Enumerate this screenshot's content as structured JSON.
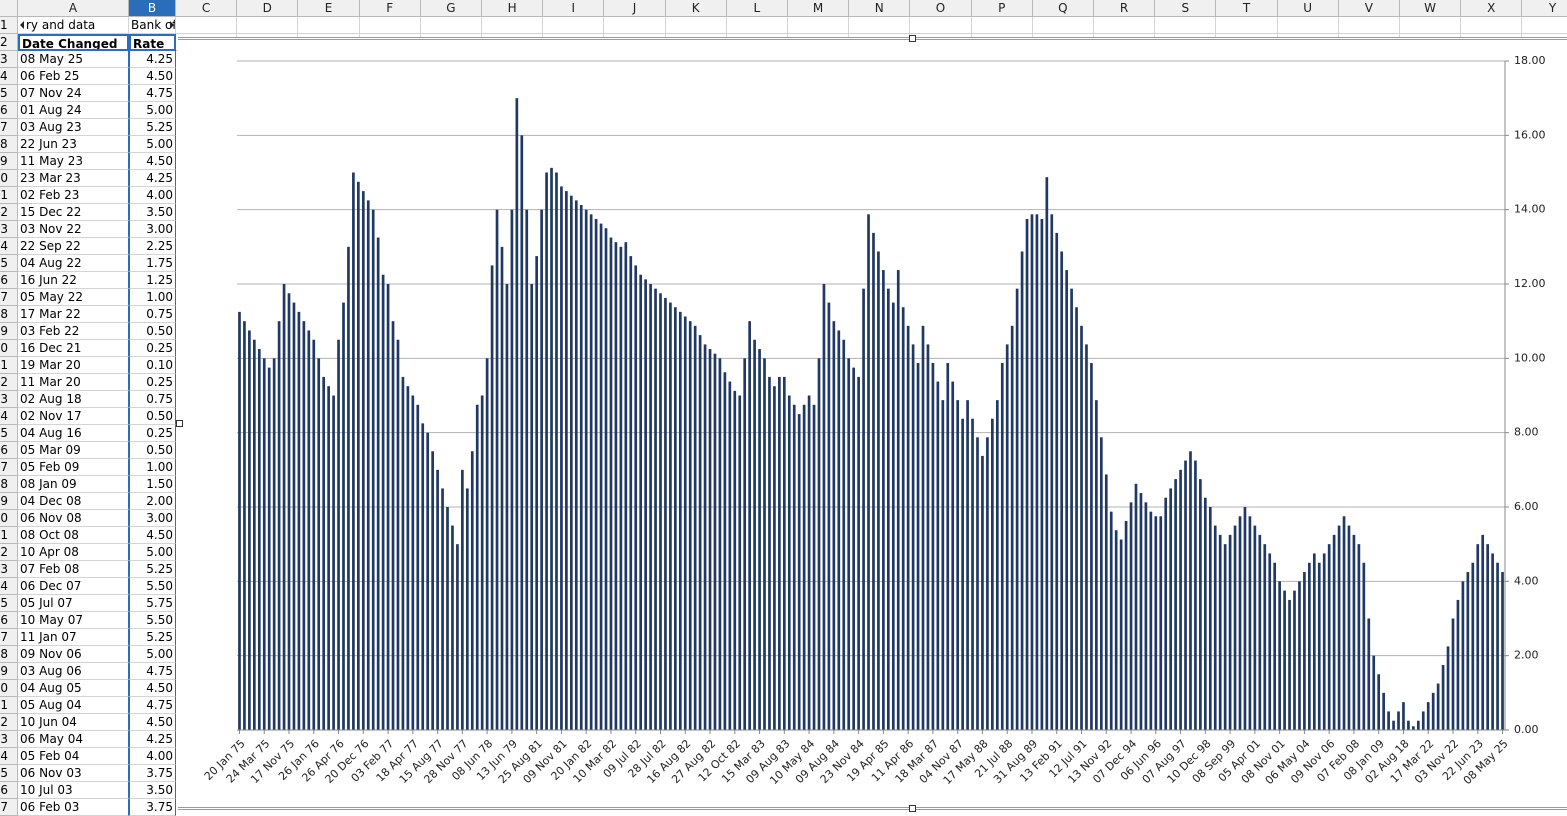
{
  "spreadsheet": {
    "column_headers": [
      "A",
      "B",
      "C",
      "D",
      "E",
      "F",
      "G",
      "H",
      "I",
      "J",
      "K",
      "L",
      "M",
      "N",
      "O",
      "P",
      "Q",
      "R",
      "S",
      "T",
      "U",
      "V",
      "W",
      "X",
      "Y"
    ],
    "row_headers": [
      1,
      2,
      3,
      4,
      5,
      6,
      7,
      8,
      9,
      10,
      11,
      12,
      13,
      14,
      15,
      16,
      17,
      18,
      19,
      20,
      21,
      22,
      23,
      24,
      25,
      26,
      27,
      28,
      29,
      30,
      31,
      32,
      33,
      34,
      35,
      36,
      37,
      38,
      39,
      40,
      41,
      42,
      43,
      44,
      45,
      46,
      47
    ],
    "title_cells": [
      "ry and data",
      "Bank of En"
    ],
    "table": {
      "header": [
        "Date Changed",
        "Rate"
      ],
      "rows": [
        [
          "08 May 25",
          "4.25"
        ],
        [
          "06 Feb 25",
          "4.50"
        ],
        [
          "07 Nov 24",
          "4.75"
        ],
        [
          "01 Aug 24",
          "5.00"
        ],
        [
          "03 Aug 23",
          "5.25"
        ],
        [
          "22 Jun 23",
          "5.00"
        ],
        [
          "11 May 23",
          "4.50"
        ],
        [
          "23 Mar 23",
          "4.25"
        ],
        [
          "02 Feb 23",
          "4.00"
        ],
        [
          "15 Dec 22",
          "3.50"
        ],
        [
          "03 Nov 22",
          "3.00"
        ],
        [
          "22 Sep 22",
          "2.25"
        ],
        [
          "04 Aug 22",
          "1.75"
        ],
        [
          "16 Jun 22",
          "1.25"
        ],
        [
          "05 May 22",
          "1.00"
        ],
        [
          "17 Mar 22",
          "0.75"
        ],
        [
          "03 Feb 22",
          "0.50"
        ],
        [
          "16 Dec 21",
          "0.25"
        ],
        [
          "19 Mar 20",
          "0.10"
        ],
        [
          "11 Mar 20",
          "0.25"
        ],
        [
          "02 Aug 18",
          "0.75"
        ],
        [
          "02 Nov 17",
          "0.50"
        ],
        [
          "04 Aug 16",
          "0.25"
        ],
        [
          "05 Mar 09",
          "0.50"
        ],
        [
          "05 Feb 09",
          "1.00"
        ],
        [
          "08 Jan 09",
          "1.50"
        ],
        [
          "04 Dec 08",
          "2.00"
        ],
        [
          "06 Nov 08",
          "3.00"
        ],
        [
          "08 Oct 08",
          "4.50"
        ],
        [
          "10 Apr 08",
          "5.00"
        ],
        [
          "07 Feb 08",
          "5.25"
        ],
        [
          "06 Dec 07",
          "5.50"
        ],
        [
          "05 Jul 07",
          "5.75"
        ],
        [
          "10 May 07",
          "5.50"
        ],
        [
          "11 Jan 07",
          "5.25"
        ],
        [
          "09 Nov 06",
          "5.00"
        ],
        [
          "03 Aug 06",
          "4.75"
        ],
        [
          "04 Aug 05",
          "4.50"
        ],
        [
          "05 Aug 04",
          "4.75"
        ],
        [
          "10 Jun 04",
          "4.50"
        ],
        [
          "06 May 04",
          "4.25"
        ],
        [
          "05 Feb 04",
          "4.00"
        ],
        [
          "06 Nov 03",
          "3.75"
        ],
        [
          "10 Jul 03",
          "3.50"
        ],
        [
          "06 Feb 03",
          "3.75"
        ]
      ]
    }
  },
  "chart_data": {
    "type": "bar",
    "color": "#1f3864",
    "grid": true,
    "ylim": [
      0,
      18
    ],
    "yticks": [
      {
        "value": 0,
        "label": "0.00"
      },
      {
        "value": 2,
        "label": "2.00"
      },
      {
        "value": 4,
        "label": "4.00"
      },
      {
        "value": 6,
        "label": "6.00"
      },
      {
        "value": 8,
        "label": "8.00"
      },
      {
        "value": 10,
        "label": "10.00"
      },
      {
        "value": 12,
        "label": "12.00"
      },
      {
        "value": 14,
        "label": "14.00"
      },
      {
        "value": 16,
        "label": "16.00"
      },
      {
        "value": 18,
        "label": "18.00"
      }
    ],
    "categories": [
      "20 Jan 75",
      null,
      null,
      null,
      null,
      "24 Mar 75",
      null,
      null,
      null,
      null,
      "17 Nov 75",
      null,
      null,
      null,
      null,
      "26 Jan 76",
      null,
      null,
      null,
      null,
      "26 Apr 76",
      null,
      null,
      null,
      null,
      "20 Dec 76",
      null,
      null,
      null,
      null,
      "03 Feb 77",
      null,
      null,
      null,
      null,
      "18 Apr 77",
      null,
      null,
      null,
      null,
      "15 Aug 77",
      null,
      null,
      null,
      null,
      "28 Nov 77",
      null,
      null,
      null,
      null,
      "08 Jun 78",
      null,
      null,
      null,
      null,
      "13 Jun 79",
      null,
      null,
      null,
      null,
      "25 Aug 81",
      null,
      null,
      null,
      null,
      "09 Nov 81",
      null,
      null,
      null,
      null,
      "20 Jan 82",
      null,
      null,
      null,
      null,
      "10 Mar 82",
      null,
      null,
      null,
      null,
      "09 Jul 82",
      null,
      null,
      null,
      null,
      "28 Jul 82",
      null,
      null,
      null,
      null,
      "16 Aug 82",
      null,
      null,
      null,
      null,
      "27 Aug 82",
      null,
      null,
      null,
      null,
      "12 Oct 82",
      null,
      null,
      null,
      null,
      "15 Mar 83",
      null,
      null,
      null,
      null,
      "09 Aug 83",
      null,
      null,
      null,
      null,
      "10 May 84",
      null,
      null,
      null,
      null,
      "09 Aug 84",
      null,
      null,
      null,
      null,
      "23 Nov 84",
      null,
      null,
      null,
      null,
      "19 Apr 85",
      null,
      null,
      null,
      null,
      "11 Apr 86",
      null,
      null,
      null,
      null,
      "18 Mar 87",
      null,
      null,
      null,
      null,
      "04 Nov 87",
      null,
      null,
      null,
      null,
      "17 May 88",
      null,
      null,
      null,
      null,
      "21 Jul 88",
      null,
      null,
      null,
      null,
      "31 Aug 89",
      null,
      null,
      null,
      null,
      "13 Feb 91",
      null,
      null,
      null,
      null,
      "12 Jul 91",
      null,
      null,
      null,
      null,
      "13 Nov 92",
      null,
      null,
      null,
      null,
      "07 Dec 94",
      null,
      null,
      null,
      null,
      "06 Jun 96",
      null,
      null,
      null,
      null,
      "07 Aug 97",
      null,
      null,
      null,
      null,
      "10 Dec 98",
      null,
      null,
      null,
      null,
      "08 Sep 99",
      null,
      null,
      null,
      null,
      "05 Apr 01",
      null,
      null,
      null,
      null,
      "08 Nov 01",
      null,
      null,
      null,
      null,
      "06 May 04",
      null,
      null,
      null,
      null,
      "09 Nov 06",
      null,
      null,
      null,
      null,
      "07 Feb 08",
      null,
      null,
      null,
      null,
      "08 Jan 09",
      null,
      null,
      null,
      null,
      "02 Aug 18",
      null,
      null,
      null,
      null,
      "17 Mar 22",
      null,
      null,
      null,
      null,
      "03 Nov 22",
      null,
      null,
      null,
      null,
      "22 Jun 23",
      null,
      null,
      null,
      null,
      "08 May 25"
    ],
    "values": [
      11.25,
      11,
      10.75,
      10.5,
      10.25,
      10,
      9.75,
      10,
      11,
      12,
      11.75,
      11.5,
      11.25,
      11,
      10.75,
      10.5,
      10,
      9.5,
      9.25,
      9,
      10.5,
      11.5,
      13,
      15,
      14.75,
      14.5,
      14.25,
      14,
      13.25,
      12.25,
      12,
      11,
      10.5,
      9.5,
      9.25,
      9,
      8.75,
      8.25,
      8,
      7.5,
      7,
      6.5,
      6,
      5.5,
      5,
      7,
      6.5,
      7.5,
      8.75,
      9,
      10,
      12.5,
      14,
      13,
      12,
      14,
      17,
      16,
      14,
      12,
      12.75,
      14,
      15,
      15.125,
      15,
      14.625,
      14.5,
      14.375,
      14.25,
      14.125,
      14,
      13.875,
      13.75,
      13.625,
      13.5,
      13.25,
      13.125,
      13,
      13.125,
      12.75,
      12.5,
      12.25,
      12.125,
      12,
      11.875,
      11.75,
      11.625,
      11.5,
      11.375,
      11.25,
      11.125,
      11,
      10.875,
      10.625,
      10.375,
      10.25,
      10.125,
      10,
      9.625,
      9.375,
      9.125,
      9,
      10,
      11,
      10.5,
      10.25,
      10,
      9.5,
      9.25,
      9.5,
      9.5,
      9,
      8.75,
      8.5,
      8.75,
      9,
      8.75,
      10,
      12,
      11.5,
      11,
      10.75,
      10.5,
      10,
      9.75,
      9.5,
      11.875,
      13.875,
      13.375,
      12.875,
      12.375,
      11.875,
      11.5,
      12.375,
      11.375,
      10.875,
      10.375,
      9.875,
      10.875,
      10.375,
      9.875,
      9.375,
      8.875,
      9.875,
      9.375,
      8.875,
      8.375,
      8.875,
      8.375,
      7.875,
      7.375,
      7.875,
      8.375,
      8.875,
      9.875,
      10.375,
      10.875,
      11.875,
      12.875,
      13.75,
      13.875,
      13.875,
      13.75,
      14.875,
      13.875,
      13.375,
      12.875,
      12.375,
      11.875,
      11.375,
      10.875,
      10.375,
      9.875,
      8.875,
      7.875,
      6.875,
      5.875,
      5.375,
      5.125,
      5.625,
      6.125,
      6.625,
      6.375,
      6.125,
      5.875,
      5.75,
      5.75,
      6.25,
      6.5,
      6.75,
      7,
      7.25,
      7.5,
      7.25,
      6.75,
      6.25,
      6,
      5.5,
      5.25,
      5,
      5.25,
      5.5,
      5.75,
      6,
      5.75,
      5.5,
      5.25,
      5,
      4.75,
      4.5,
      4,
      3.75,
      3.5,
      3.75,
      4,
      4.25,
      4.5,
      4.75,
      4.5,
      4.75,
      5,
      5.25,
      5.5,
      5.75,
      5.5,
      5.25,
      5,
      4.5,
      3,
      2,
      1.5,
      1,
      0.5,
      0.25,
      0.5,
      0.75,
      0.25,
      0.1,
      0.25,
      0.5,
      0.75,
      1,
      1.25,
      1.75,
      2.25,
      3,
      3.5,
      4,
      4.25,
      4.5,
      5,
      5.25,
      5,
      4.75,
      4.5,
      4.25
    ]
  }
}
